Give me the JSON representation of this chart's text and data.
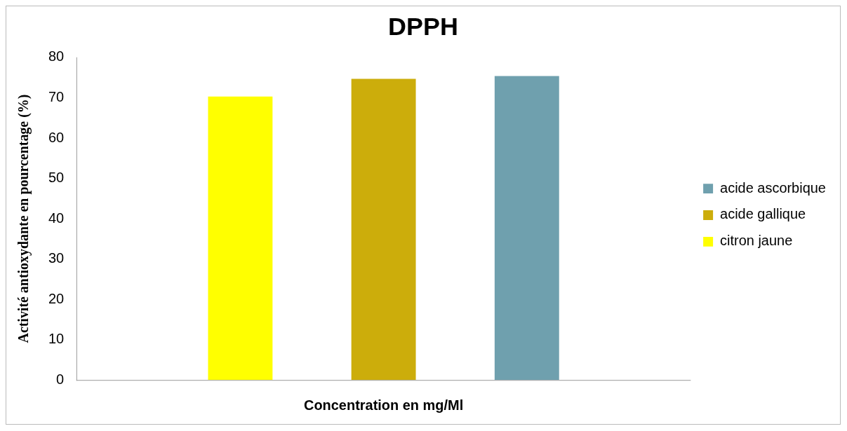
{
  "chart_data": {
    "type": "bar",
    "title": "DPPH",
    "xlabel": "Concentration en mg/Ml",
    "ylabel": "Activité antioxydante en pourcentage (%)",
    "categories": [
      null
    ],
    "series": [
      {
        "name": "citron jaune",
        "color": "#ffff00",
        "values": [
          70.3
        ]
      },
      {
        "name": "acide gallique",
        "color": "#ccad0b",
        "values": [
          74.7
        ]
      },
      {
        "name": "acide ascorbique",
        "color": "#6fa0ae",
        "values": [
          75.4
        ]
      }
    ],
    "ylim": [
      0,
      80
    ],
    "yticks": [
      0,
      10,
      20,
      30,
      40,
      50,
      60,
      70,
      80
    ],
    "grid": false,
    "legend": "right"
  }
}
